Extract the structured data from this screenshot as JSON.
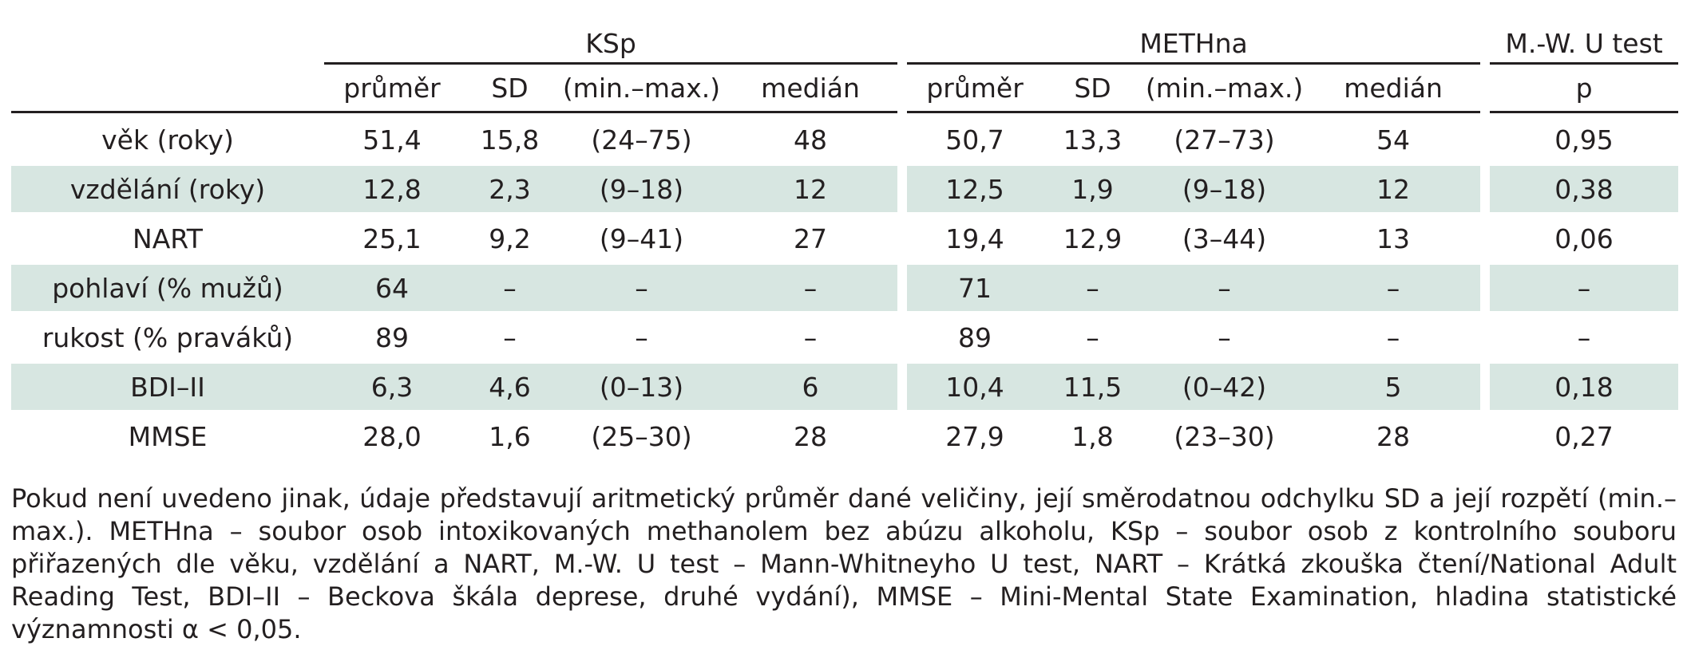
{
  "table": {
    "groups": {
      "ksp": "KSp",
      "methna": "METHna",
      "mwu": "M.-W. U test"
    },
    "subheaders": {
      "ksp": [
        "průměr",
        "SD",
        "(min.–max.)",
        "medián"
      ],
      "methna": [
        "průměr",
        "SD",
        "(min.–max.)",
        "medián"
      ],
      "mwu": "p"
    },
    "rows": [
      {
        "label": "věk (roky)",
        "ksp": [
          "51,4",
          "15,8",
          "(24–75)",
          "48"
        ],
        "methna": [
          "50,7",
          "13,3",
          "(27–73)",
          "54"
        ],
        "p": "0,95"
      },
      {
        "label": "vzdělání (roky)",
        "ksp": [
          "12,8",
          "2,3",
          "(9–18)",
          "12"
        ],
        "methna": [
          "12,5",
          "1,9",
          "(9–18)",
          "12"
        ],
        "p": "0,38"
      },
      {
        "label": "NART",
        "ksp": [
          "25,1",
          "9,2",
          "(9–41)",
          "27"
        ],
        "methna": [
          "19,4",
          "12,9",
          "(3–44)",
          "13"
        ],
        "p": "0,06"
      },
      {
        "label": "pohlaví (% mužů)",
        "ksp": [
          "64",
          "–",
          "–",
          "–"
        ],
        "methna": [
          "71",
          "–",
          "–",
          "–"
        ],
        "p": "–"
      },
      {
        "label": "rukost (% praváků)",
        "ksp": [
          "89",
          "–",
          "–",
          "–"
        ],
        "methna": [
          "89",
          "–",
          "–",
          "–"
        ],
        "p": "–"
      },
      {
        "label": "BDI–II",
        "ksp": [
          "6,3",
          "4,6",
          "(0–13)",
          "6"
        ],
        "methna": [
          "10,4",
          "11,5",
          "(0–42)",
          "5"
        ],
        "p": "0,18"
      },
      {
        "label": "MMSE",
        "ksp": [
          "28,0",
          "1,6",
          "(25–30)",
          "28"
        ],
        "methna": [
          "27,9",
          "1,8",
          "(23–30)",
          "28"
        ],
        "p": "0,27"
      }
    ]
  },
  "footnote": "Pokud není uvedeno jinak, údaje představují aritmetický průměr dané veličiny, její směrodatnou odchylku SD a její rozpětí (min.–max.). METHna – soubor osob intoxikovaných methanolem bez abúzu alkoholu, KSp – soubor osob z kontrolního souboru přiřazených dle věku, vzdělání a NART, M.-W. U test – Mann-Whitneyho U test, NART – Krátká zkouška čtení/National Adult Reading Test, BDI–II – Beckova škála deprese, druhé vydání), MMSE – Mini-Mental State Examination, hladina statistické významnosti α < 0,05.",
  "colors": {
    "row_shade": "#d7e6e1",
    "text": "#231f20"
  }
}
